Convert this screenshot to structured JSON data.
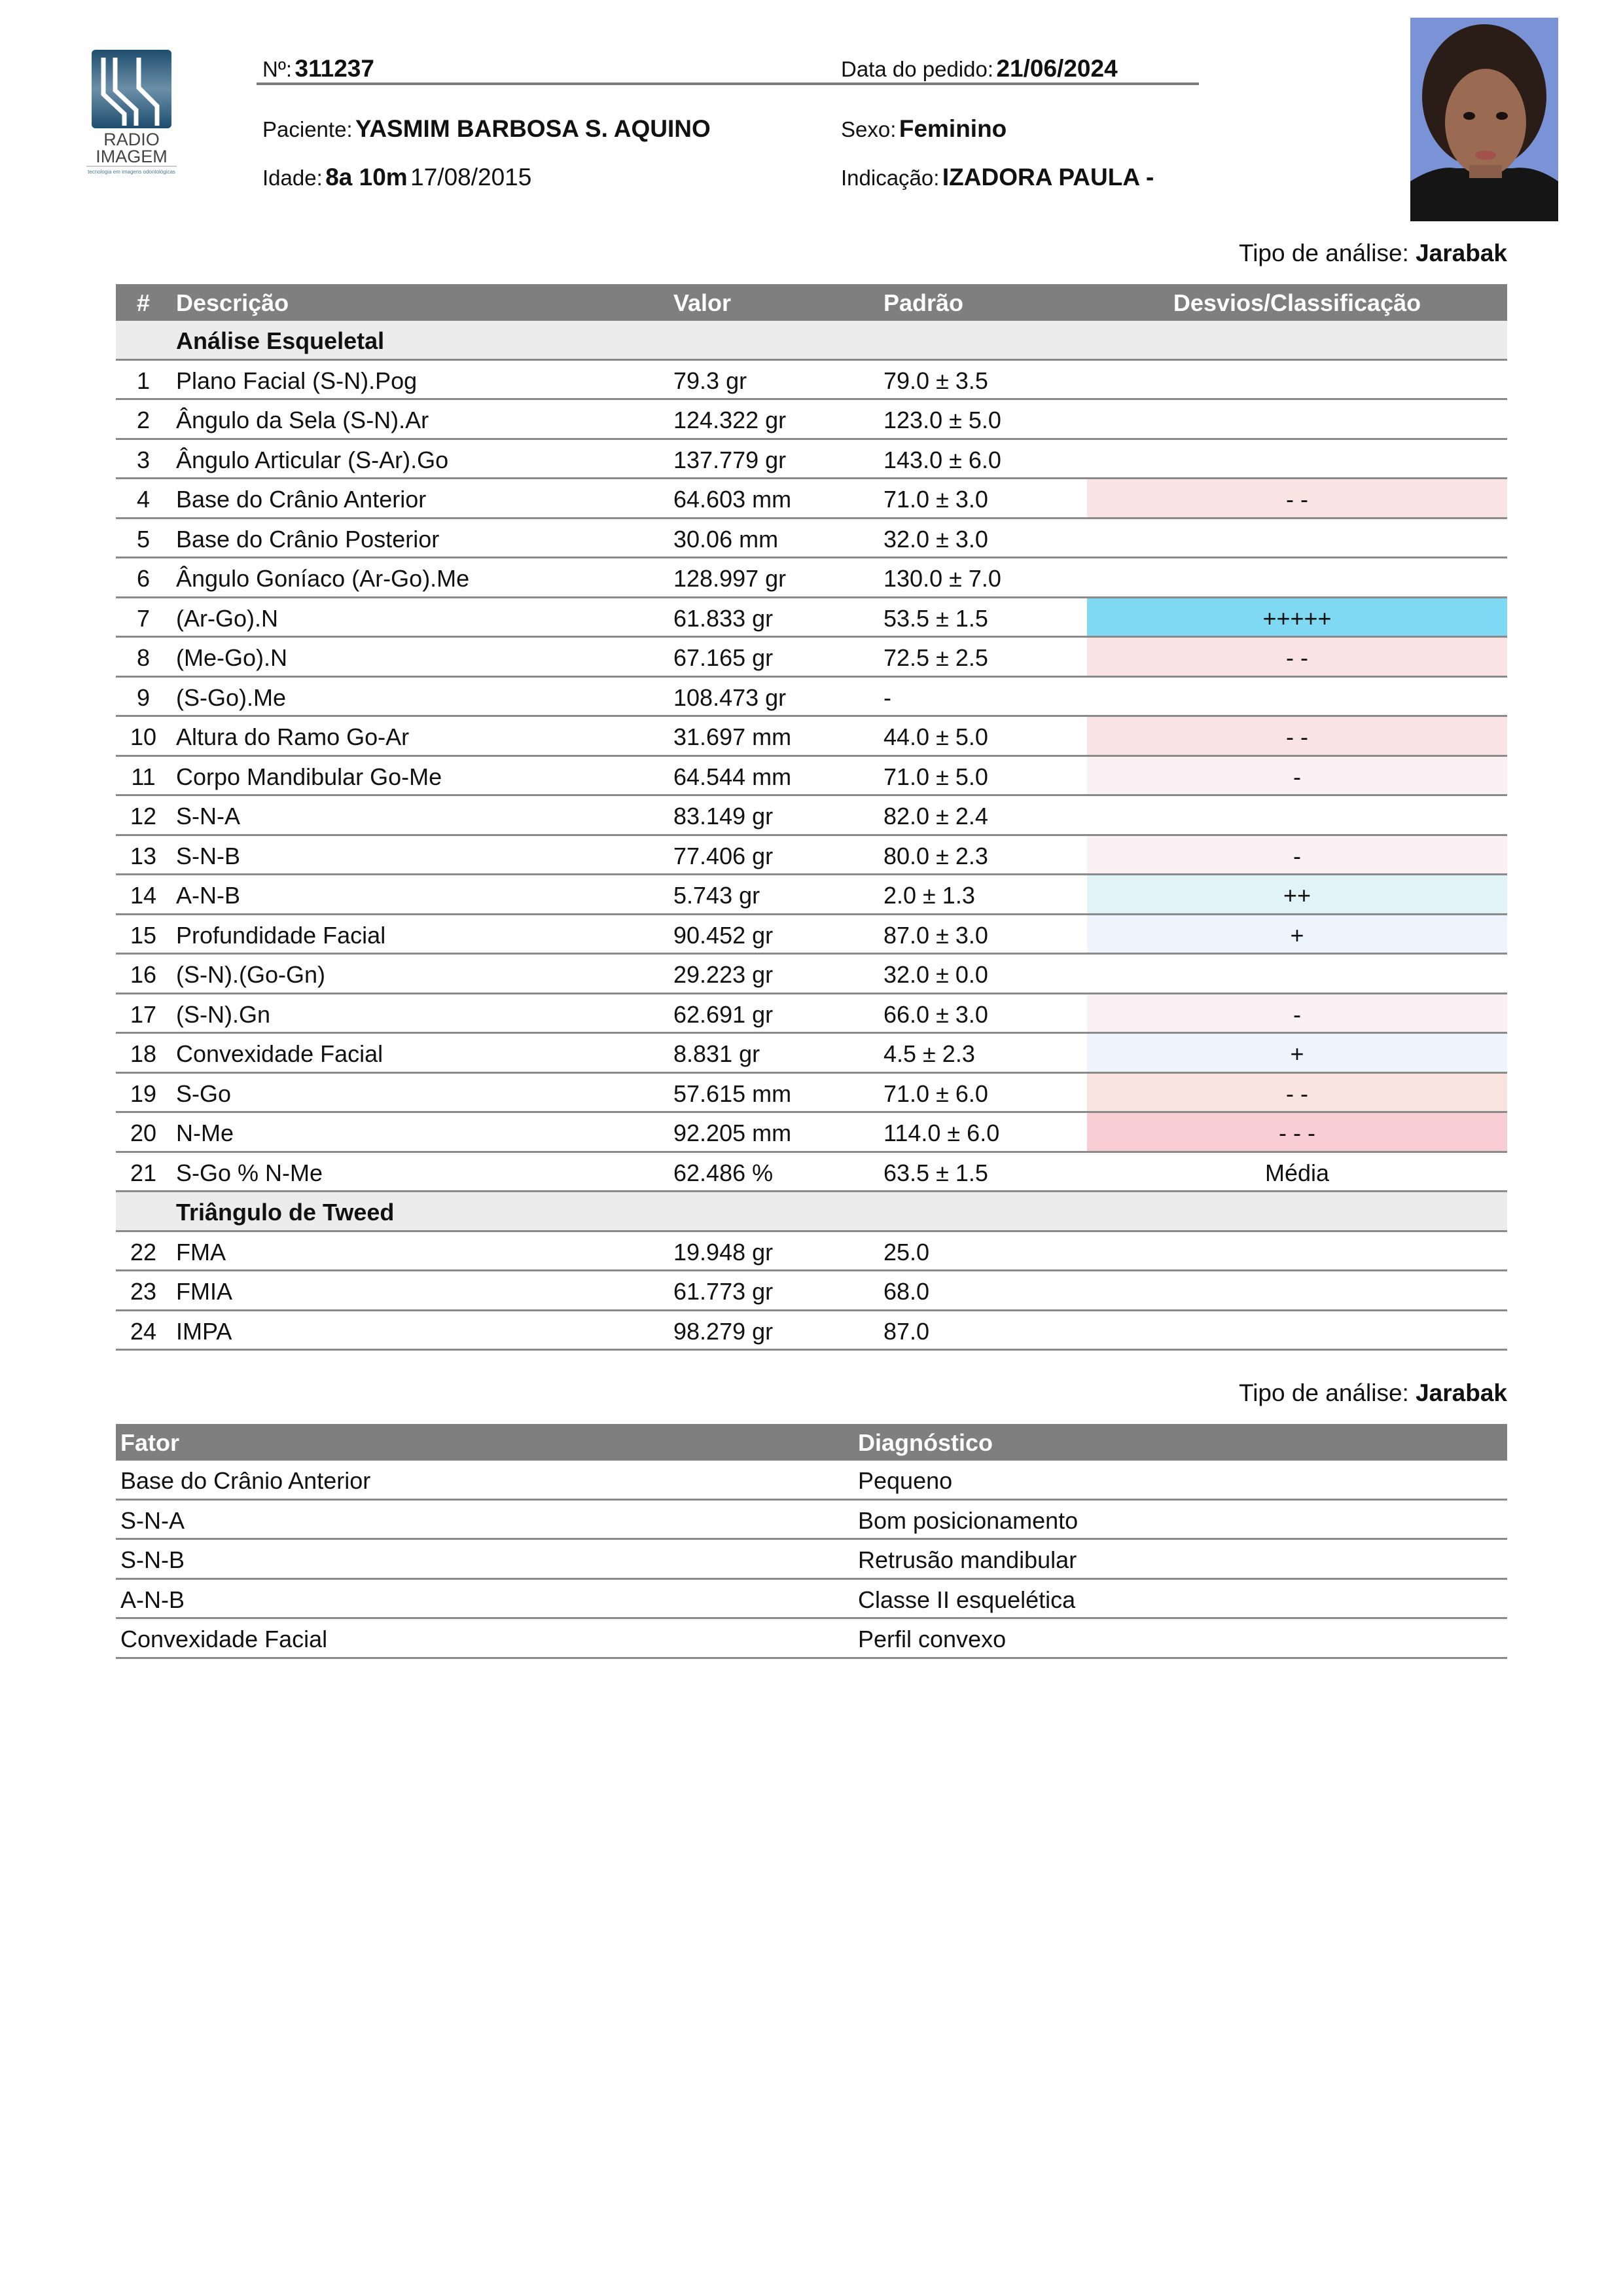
{
  "header": {
    "logo_text": [
      "RADIO",
      "IMAGEM"
    ],
    "logo_tagline": "tecnologia em imagens odontológicas",
    "numero_label": "Nº:",
    "numero": "311237",
    "data_label": "Data do pedido:",
    "data": "21/06/2024",
    "paciente_label": "Paciente:",
    "paciente": "YASMIM BARBOSA S. AQUINO",
    "sexo_label": "Sexo:",
    "sexo": "Feminino",
    "idade_label": "Idade:",
    "idade": "8a 10m",
    "nascimento": "17/08/2015",
    "indicacao_label": "Indicação:",
    "indicacao": "IZADORA PAULA -"
  },
  "analysis1": {
    "tipo_label": "Tipo de análise:",
    "tipo": "Jarabak"
  },
  "table1": {
    "columns": [
      "#",
      "Descrição",
      "Valor",
      "Padrão",
      "Desvios/Classificação"
    ],
    "sections": [
      {
        "title": "Análise Esqueletal",
        "rows": [
          {
            "n": "1",
            "desc": "Plano Facial (S-N).Pog",
            "valor": "79.3 gr",
            "padrao": "79.0 ± 3.5",
            "desvio": "",
            "color": ""
          },
          {
            "n": "2",
            "desc": "Ângulo da Sela (S-N).Ar",
            "valor": "124.322 gr",
            "padrao": "123.0 ± 5.0",
            "desvio": "",
            "color": ""
          },
          {
            "n": "3",
            "desc": "Ângulo Articular (S-Ar).Go",
            "valor": "137.779 gr",
            "padrao": "143.0 ± 6.0",
            "desvio": "",
            "color": ""
          },
          {
            "n": "4",
            "desc": "Base do Crânio Anterior",
            "valor": "64.603 mm",
            "padrao": "71.0 ± 3.0",
            "desvio": "- -",
            "color": "#f9e3e3"
          },
          {
            "n": "5",
            "desc": "Base do Crânio Posterior",
            "valor": "30.06 mm",
            "padrao": "32.0 ± 3.0",
            "desvio": "",
            "color": ""
          },
          {
            "n": "6",
            "desc": "Ângulo Goníaco (Ar-Go).Me",
            "valor": "128.997 gr",
            "padrao": "130.0 ± 7.0",
            "desvio": "",
            "color": ""
          },
          {
            "n": "7",
            "desc": "(Ar-Go).N",
            "valor": "61.833 gr",
            "padrao": "53.5 ± 1.5",
            "desvio": "+++++",
            "color": "#80d9f3"
          },
          {
            "n": "8",
            "desc": "(Me-Go).N",
            "valor": "67.165 gr",
            "padrao": "72.5 ± 2.5",
            "desvio": "- -",
            "color": "#f9e3e3"
          },
          {
            "n": "9",
            "desc": "(S-Go).Me",
            "valor": "108.473 gr",
            "padrao": "-",
            "desvio": "",
            "color": ""
          },
          {
            "n": "10",
            "desc": "Altura do Ramo Go-Ar",
            "valor": "31.697 mm",
            "padrao": "44.0 ± 5.0",
            "desvio": "- -",
            "color": "#f9e3e3"
          },
          {
            "n": "11",
            "desc": "Corpo Mandibular Go-Me",
            "valor": "64.544 mm",
            "padrao": "71.0 ± 5.0",
            "desvio": "-",
            "color": "#fbf0f3"
          },
          {
            "n": "12",
            "desc": "S-N-A",
            "valor": "83.149 gr",
            "padrao": "82.0 ± 2.4",
            "desvio": "",
            "color": ""
          },
          {
            "n": "13",
            "desc": "S-N-B",
            "valor": "77.406 gr",
            "padrao": "80.0 ± 2.3",
            "desvio": "-",
            "color": "#fbf0f3"
          },
          {
            "n": "14",
            "desc": "A-N-B",
            "valor": "5.743 gr",
            "padrao": "2.0 ± 1.3",
            "desvio": "++",
            "color": "#e1f3f7"
          },
          {
            "n": "15",
            "desc": "Profundidade Facial",
            "valor": "90.452 gr",
            "padrao": "87.0 ± 3.0",
            "desvio": "+",
            "color": "#eef4fb"
          },
          {
            "n": "16",
            "desc": "(S-N).(Go-Gn)",
            "valor": "29.223 gr",
            "padrao": "32.0 ± 0.0",
            "desvio": "",
            "color": ""
          },
          {
            "n": "17",
            "desc": "(S-N).Gn",
            "valor": "62.691 gr",
            "padrao": "66.0 ± 3.0",
            "desvio": "-",
            "color": "#fbf0f3"
          },
          {
            "n": "18",
            "desc": "Convexidade Facial",
            "valor": "8.831 gr",
            "padrao": "4.5 ± 2.3",
            "desvio": "+",
            "color": "#eef4fb"
          },
          {
            "n": "19",
            "desc": "S-Go",
            "valor": "57.615 mm",
            "padrao": "71.0 ± 6.0",
            "desvio": "- -",
            "color": "#f9e3df"
          },
          {
            "n": "20",
            "desc": "N-Me",
            "valor": "92.205 mm",
            "padrao": "114.0 ± 6.0",
            "desvio": "- - -",
            "color": "#f9cdd4"
          },
          {
            "n": "21",
            "desc": "S-Go % N-Me",
            "valor": "62.486 %",
            "padrao": "63.5 ± 1.5",
            "desvio": "Média",
            "color": ""
          }
        ]
      },
      {
        "title": "Triângulo de Tweed",
        "rows": [
          {
            "n": "22",
            "desc": "FMA",
            "valor": "19.948 gr",
            "padrao": "25.0",
            "desvio": "",
            "color": ""
          },
          {
            "n": "23",
            "desc": "FMIA",
            "valor": "61.773 gr",
            "padrao": "68.0",
            "desvio": "",
            "color": ""
          },
          {
            "n": "24",
            "desc": "IMPA",
            "valor": "98.279 gr",
            "padrao": "87.0",
            "desvio": "",
            "color": ""
          }
        ]
      }
    ]
  },
  "analysis2": {
    "tipo_label": "Tipo de análise:",
    "tipo": "Jarabak"
  },
  "table2": {
    "columns": [
      "Fator",
      "Diagnóstico"
    ],
    "rows": [
      {
        "fator": "Base do Crânio Anterior",
        "diag": "Pequeno"
      },
      {
        "fator": "S-N-A",
        "diag": "Bom posicionamento"
      },
      {
        "fator": "S-N-B",
        "diag": "Retrusão mandibular"
      },
      {
        "fator": "A-N-B",
        "diag": "Classe II esquelética"
      },
      {
        "fator": "Convexidade Facial",
        "diag": "Perfil convexo"
      }
    ]
  },
  "colors": {
    "header_bg": "#7f7f7f",
    "section_bg": "#ececec",
    "logo": "#2f5f80"
  }
}
